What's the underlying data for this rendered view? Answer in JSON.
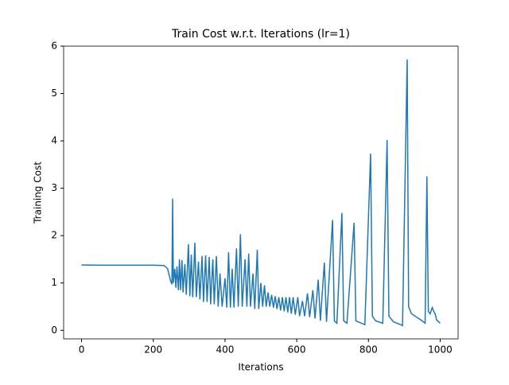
{
  "chart_data": {
    "type": "line",
    "title": "Train Cost w.r.t. Iterations (lr=1)",
    "x_label": "Iterations",
    "y_label": "Training Cost",
    "xlim": [
      -50,
      1050
    ],
    "ylim": [
      -0.18,
      6.0
    ],
    "xticks": [
      0,
      200,
      400,
      600,
      800,
      1000
    ],
    "yticks": [
      0,
      1,
      2,
      3,
      4,
      5,
      6
    ],
    "series": [
      {
        "color": "#1f77b4",
        "x": [
          0,
          50,
          100,
          150,
          200,
          230,
          240,
          248,
          252,
          254,
          256,
          260,
          263,
          266,
          270,
          273,
          276,
          280,
          283,
          288,
          292,
          298,
          302,
          306,
          310,
          316,
          320,
          326,
          330,
          336,
          340,
          346,
          350,
          356,
          360,
          366,
          370,
          376,
          381,
          386,
          392,
          400,
          405,
          410,
          415,
          420,
          425,
          432,
          437,
          443,
          448,
          456,
          461,
          466,
          471,
          478,
          483,
          490,
          494,
          500,
          505,
          510,
          515,
          520,
          525,
          530,
          535,
          540,
          545,
          550,
          555,
          560,
          565,
          570,
          575,
          580,
          585,
          590,
          596,
          603,
          608,
          616,
          622,
          630,
          636,
          645,
          651,
          660,
          666,
          677,
          683,
          700,
          705,
          712,
          726,
          731,
          740,
          760,
          765,
          790,
          806,
          811,
          820,
          840,
          852,
          857,
          870,
          890,
          895,
          908,
          912,
          920,
          950,
          958,
          963,
          967,
          972,
          978,
          982,
          986,
          990,
          1000
        ],
        "values": [
          1.38,
          1.375,
          1.375,
          1.375,
          1.375,
          1.37,
          1.3,
          1.05,
          0.97,
          2.78,
          1.0,
          1.3,
          0.9,
          1.35,
          0.85,
          1.5,
          0.85,
          1.48,
          0.8,
          1.4,
          0.75,
          1.82,
          0.72,
          1.6,
          0.7,
          1.85,
          0.7,
          1.45,
          0.65,
          1.57,
          0.6,
          1.58,
          0.6,
          1.55,
          0.55,
          1.5,
          0.55,
          1.57,
          0.5,
          1.2,
          0.5,
          1.1,
          0.48,
          1.65,
          0.48,
          1.3,
          0.48,
          1.73,
          0.5,
          2.03,
          0.5,
          1.5,
          0.5,
          1.62,
          0.5,
          1.2,
          0.45,
          1.7,
          0.45,
          1.0,
          0.5,
          0.95,
          0.5,
          0.8,
          0.5,
          0.75,
          0.48,
          0.72,
          0.45,
          0.7,
          0.42,
          0.7,
          0.4,
          0.7,
          0.38,
          0.7,
          0.35,
          0.7,
          0.33,
          0.7,
          0.3,
          0.62,
          0.3,
          0.78,
          0.28,
          0.85,
          0.25,
          1.07,
          0.2,
          1.43,
          0.18,
          2.33,
          0.2,
          0.15,
          2.48,
          0.2,
          0.15,
          2.27,
          0.2,
          0.12,
          3.73,
          0.3,
          0.2,
          0.15,
          4.02,
          0.3,
          0.18,
          0.12,
          0.1,
          5.72,
          0.5,
          0.35,
          0.2,
          0.15,
          3.25,
          0.4,
          0.35,
          0.48,
          0.4,
          0.35,
          0.22,
          0.15
        ]
      }
    ]
  }
}
